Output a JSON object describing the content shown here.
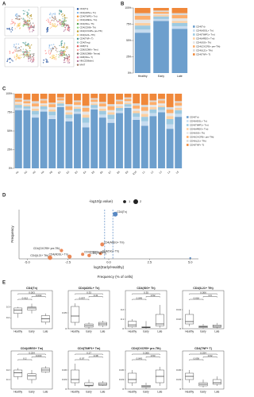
{
  "figure": {
    "panel_labels": [
      "A",
      "B",
      "C",
      "D",
      "E"
    ],
    "e_axis_title": "Frequency (% of cells)"
  },
  "chart_data": [
    {
      "type": "umap",
      "clusters": [
        {
          "name": "CD4(Tn)",
          "color": "#1f4e9c"
        },
        {
          "name": "CD4(ADSL+ Tn)",
          "color": "#7fb2e5"
        },
        {
          "name": "CD4(TIMP1+ Tm)",
          "color": "#f28e2b"
        },
        {
          "name": "CD4(AREG+ Tm)",
          "color": "#ffbe7d"
        },
        {
          "name": "CD4(ISG+ Th)",
          "color": "#59a14f"
        },
        {
          "name": "CD4(CD69+ Th)",
          "color": "#8cd17d"
        },
        {
          "name": "CD4(CXCR5+ pre-Tfh)",
          "color": "#b6992d"
        },
        {
          "name": "CD4(IL21+ Tfh)",
          "color": "#f1ce63"
        },
        {
          "name": "CD4(TNF+ T)",
          "color": "#499894"
        },
        {
          "name": "CD4(Treg)",
          "color": "#86bcb6"
        },
        {
          "name": "CD8(Tn)",
          "color": "#e15759"
        },
        {
          "name": "CD8(GZMK+ Tem)",
          "color": "#ff9d9a"
        },
        {
          "name": "CD8(GZMB+ Temra)",
          "color": "#79706e"
        },
        {
          "name": "CD8(ISG+ T)",
          "color": "#d37295"
        },
        {
          "name": "NK(CD56dim)",
          "color": "#b07aa1"
        },
        {
          "name": "MAIT",
          "color": "#9d7660"
        }
      ]
    },
    {
      "type": "stacked_bar",
      "categories": [
        "Healthy",
        "Early",
        "Late"
      ],
      "ylim": [
        0,
        100
      ],
      "yticks": [
        {
          "value": 0,
          "label": "0%"
        },
        {
          "value": 25,
          "label": "25%"
        },
        {
          "value": 50,
          "label": "50%"
        },
        {
          "value": 75,
          "label": "75%"
        },
        {
          "value": 100,
          "label": "100%"
        }
      ],
      "legend": "right",
      "series": [
        {
          "name": "CD4(Tn)",
          "color": "#6d9fcd",
          "values": [
            62,
            80,
            68
          ]
        },
        {
          "name": "CD4(ADSL+ Tn)",
          "color": "#c6dbef",
          "values": [
            5,
            3,
            4
          ]
        },
        {
          "name": "CD4(TIMP1+ Tm)",
          "color": "#9ecae1",
          "values": [
            6,
            4,
            5
          ]
        },
        {
          "name": "CD4(AREG+ Tm)",
          "color": "#fdd0a2",
          "values": [
            4,
            2,
            3
          ]
        },
        {
          "name": "CD4(ISG+ Th)",
          "color": "#e6e6e6",
          "values": [
            5,
            2,
            4
          ]
        },
        {
          "name": "CD4(CXCR5+ pre-Tfh)",
          "color": "#fdae6b",
          "values": [
            6,
            3,
            5
          ]
        },
        {
          "name": "CD4(IL21+ Tfh)",
          "color": "#d9d9d9",
          "values": [
            4,
            2,
            3
          ]
        },
        {
          "name": "CD4(TNF+ T)",
          "color": "#f0883a",
          "values": [
            8,
            4,
            8
          ]
        }
      ]
    },
    {
      "type": "stacked_bar",
      "categories": [
        "H1",
        "H2",
        "H3",
        "H4",
        "H5",
        "E1",
        "E2",
        "E3",
        "E4",
        "E5",
        "E6",
        "E7",
        "E8",
        "E9",
        "E10",
        "L1",
        "L2",
        "L3",
        "L4",
        "L5"
      ],
      "ylim": [
        0,
        100
      ],
      "yticks": [
        {
          "value": 0,
          "label": "0%"
        },
        {
          "value": 25,
          "label": "25%"
        },
        {
          "value": 50,
          "label": "50%"
        },
        {
          "value": 75,
          "label": "75%"
        },
        {
          "value": 100,
          "label": "100%"
        }
      ],
      "legend": "right",
      "series": [
        {
          "name": "CD4(Tn)",
          "color": "#6d9fcd",
          "values": [
            78,
            78,
            68,
            76,
            66,
            82,
            63,
            73,
            55,
            79,
            68,
            61,
            74,
            81,
            65,
            57,
            70,
            75,
            53,
            69
          ]
        },
        {
          "name": "CD4(ADSL+ Tn)",
          "color": "#c6dbef",
          "values": [
            3,
            2,
            4,
            3,
            5,
            2,
            4,
            3,
            6,
            2,
            4,
            5,
            3,
            2,
            4,
            6,
            4,
            3,
            6,
            4
          ]
        },
        {
          "name": "CD4(TIMP1+ Tm)",
          "color": "#9ecae1",
          "values": [
            4,
            3,
            5,
            4,
            5,
            3,
            5,
            4,
            7,
            4,
            5,
            6,
            4,
            3,
            5,
            6,
            5,
            4,
            7,
            5
          ]
        },
        {
          "name": "CD4(AREG+ Tm)",
          "color": "#fdd0a2",
          "values": [
            2,
            2,
            3,
            2,
            3,
            2,
            3,
            2,
            4,
            2,
            3,
            3,
            2,
            2,
            3,
            4,
            3,
            2,
            4,
            3
          ]
        },
        {
          "name": "CD4(ISG+ Th)",
          "color": "#e6e6e6",
          "values": [
            2,
            2,
            3,
            2,
            3,
            2,
            3,
            3,
            4,
            2,
            3,
            3,
            3,
            2,
            3,
            4,
            3,
            3,
            4,
            3
          ]
        },
        {
          "name": "CD4(CXCR5+ pre-Tfh)",
          "color": "#fdae6b",
          "values": [
            3,
            3,
            4,
            4,
            4,
            3,
            5,
            4,
            5,
            3,
            4,
            5,
            4,
            3,
            4,
            5,
            4,
            4,
            5,
            4
          ]
        },
        {
          "name": "CD4(IL21+ Tfh)",
          "color": "#d9d9d9",
          "values": [
            2,
            2,
            3,
            2,
            2,
            1,
            3,
            2,
            3,
            2,
            2,
            3,
            2,
            2,
            3,
            3,
            2,
            2,
            3,
            2
          ]
        },
        {
          "name": "CD4(TNF+ T)",
          "color": "#f0883a",
          "values": [
            6,
            8,
            10,
            7,
            12,
            5,
            14,
            9,
            16,
            6,
            11,
            14,
            8,
            5,
            13,
            15,
            9,
            7,
            18,
            10
          ]
        }
      ]
    },
    {
      "type": "scatter",
      "title": "-log10(p.value)",
      "xlabel": "log2(Early/Healthy)",
      "ylabel": "Frequency",
      "xlim": [
        -5.5,
        5.5
      ],
      "ylim": [
        0,
        0.13
      ],
      "xticks": [
        {
          "value": -5,
          "label": "-5.0"
        },
        -2.5,
        {
          "value": 0,
          "label": "0.0"
        },
        2.5,
        {
          "value": 5,
          "label": "5.0"
        }
      ],
      "vlines": [
        -0.25,
        0.25
      ],
      "size_legend": [
        1,
        2
      ],
      "x": [
        0.4,
        -0.4,
        -2.9,
        -1.6,
        -0.5,
        -2.4,
        -3.6,
        5,
        -1.2
      ],
      "values": [
        0.118,
        0.038,
        0.022,
        0.012,
        0.014,
        0.006,
        0.003,
        0.002,
        0.009
      ],
      "sizes": [
        2,
        1.5,
        1.2,
        1.1,
        1,
        1.6,
        1.8,
        0.3,
        1.3
      ],
      "labels": [
        "CD4(Tn)",
        "CD4(AREG+ Tm)",
        "CD4(CXCR5+ pre-Tfh)",
        "CD4(TIMP1+ Tm)",
        "CD4(ISG+ Th)",
        "CD4(ADSL+ Tn)",
        "CD4(IL21+ Tfh)",
        null,
        "CD4(TNF+ T)"
      ],
      "colors": [
        "#3b73b9",
        "#e8743b",
        "#e8743b",
        "#e8743b",
        "#e8743b",
        "#e8743b",
        "#e8743b",
        "#3b73b9",
        "#e8743b"
      ]
    },
    {
      "type": "box",
      "title": "CD4(Tn)",
      "groups": [
        "Healthy",
        "Early",
        "Late"
      ],
      "ylim": [
        0.1,
        0.45
      ],
      "yticks": [
        0.2,
        0.3
      ],
      "boxes": [
        {
          "min": 0.2,
          "q1": 0.24,
          "median": 0.27,
          "q3": 0.29,
          "max": 0.3
        },
        {
          "min": 0.24,
          "q1": 0.27,
          "median": 0.29,
          "q3": 0.3,
          "max": 0.33
        },
        {
          "min": 0.14,
          "q1": 0.16,
          "median": 0.19,
          "q3": 0.22,
          "max": 0.24
        }
      ],
      "p_values": [
        0.012,
        0.002,
        0.003
      ]
    },
    {
      "type": "box",
      "title": "CD4(ADSL+ Tn)",
      "groups": [
        "Healthy",
        "Early",
        "Late"
      ],
      "ylim": [
        0,
        0.12
      ],
      "yticks": [
        0,
        0.05
      ],
      "boxes": [
        {
          "min": 0.01,
          "q1": 0.02,
          "median": 0.04,
          "q3": 0.07,
          "max": 0.08
        },
        {
          "min": 0,
          "q1": 0.005,
          "median": 0.01,
          "q3": 0.015,
          "max": 0.02
        },
        {
          "min": 0.005,
          "q1": 0.01,
          "median": 0.015,
          "q3": 0.02,
          "max": 0.025
        }
      ],
      "p_values": [
        0.037,
        0.41,
        0.33
      ]
    },
    {
      "type": "box",
      "title": "CD4(ISG+ Th)",
      "groups": [
        "Healthy",
        "Early",
        "Late"
      ],
      "ylim": [
        0,
        0.4
      ],
      "yticks": [
        0,
        0.1,
        0.2
      ],
      "boxes": [
        {
          "min": 0.01,
          "q1": 0.02,
          "median": 0.04,
          "q3": 0.08,
          "max": 0.1
        },
        {
          "min": 0,
          "q1": 0.01,
          "median": 0.015,
          "q3": 0.02,
          "max": 0.08
        },
        {
          "min": 0.01,
          "q1": 0.03,
          "median": 0.05,
          "q3": 0.15,
          "max": 0.25
        }
      ],
      "p_values": [
        0.049,
        0.52,
        0.35
      ]
    },
    {
      "type": "box",
      "title": "CD4(IL21+ Tfh)",
      "groups": [
        "Healthy",
        "Early",
        "Late"
      ],
      "ylim": [
        0,
        0.08
      ],
      "yticks": [
        0,
        0.02,
        0.04
      ],
      "boxes": [
        {
          "min": 0.005,
          "q1": 0.01,
          "median": 0.015,
          "q3": 0.03,
          "max": 0.04
        },
        {
          "min": 0,
          "q1": 0.002,
          "median": 0.004,
          "q3": 0.006,
          "max": 0.01
        },
        {
          "min": 0.001,
          "q1": 0.003,
          "median": 0.005,
          "q3": 0.008,
          "max": 0.012
        }
      ],
      "p_values": [
        0.016,
        0.6,
        0.006
      ]
    },
    {
      "type": "box",
      "title": "CD4(AREG+ Tm)",
      "groups": [
        "Healthy",
        "Early",
        "Late"
      ],
      "ylim": [
        0,
        0.4
      ],
      "yticks": [
        0.1,
        0.2
      ],
      "boxes": [
        {
          "min": 0.1,
          "q1": 0.13,
          "median": 0.17,
          "q3": 0.2,
          "max": 0.22
        },
        {
          "min": 0.06,
          "q1": 0.1,
          "median": 0.14,
          "q3": 0.16,
          "max": 0.2
        },
        {
          "min": 0.17,
          "q1": 0.18,
          "median": 0.2,
          "q3": 0.22,
          "max": 0.24
        }
      ],
      "p_values": [
        0.2,
        0.003,
        0.034
      ]
    },
    {
      "type": "box",
      "title": "CD4(TIMP1+ Tm)",
      "groups": [
        "Healthy",
        "Early",
        "Late"
      ],
      "ylim": [
        0,
        0.12
      ],
      "yticks": [
        0,
        0.03,
        0.06
      ],
      "boxes": [
        {
          "min": 0.01,
          "q1": 0.02,
          "median": 0.03,
          "q3": 0.06,
          "max": 0.08
        },
        {
          "min": 0.005,
          "q1": 0.01,
          "median": 0.012,
          "q3": 0.02,
          "max": 0.03
        },
        {
          "min": 0.01,
          "q1": 0.012,
          "median": 0.015,
          "q3": 0.02,
          "max": 0.025
        }
      ],
      "p_values": [
        0.07,
        0.38,
        0.27
      ]
    },
    {
      "type": "box",
      "title": "CD4(CXCR5+ pre-Tfh)",
      "groups": [
        "Healthy",
        "Early",
        "Late"
      ],
      "ylim": [
        0,
        0.12
      ],
      "yticks": [
        0,
        0.03,
        0.06
      ],
      "boxes": [
        {
          "min": 0.01,
          "q1": 0.02,
          "median": 0.03,
          "q3": 0.05,
          "max": 0.06
        },
        {
          "min": 0,
          "q1": 0.005,
          "median": 0.008,
          "q3": 0.012,
          "max": 0.02
        },
        {
          "min": 0.01,
          "q1": 0.02,
          "median": 0.04,
          "q3": 0.06,
          "max": 0.07
        }
      ],
      "p_values": [
        0.043,
        0.53,
        0.066
      ]
    },
    {
      "type": "box",
      "title": "CD4(TNF+ T)",
      "groups": [
        "Healthy",
        "Early",
        "Late"
      ],
      "ylim": [
        0,
        0.12
      ],
      "yticks": [
        0,
        0.03,
        0.06
      ],
      "boxes": [
        {
          "min": 0.02,
          "q1": 0.03,
          "median": 0.04,
          "q3": 0.05,
          "max": 0.06
        },
        {
          "min": 0.005,
          "q1": 0.01,
          "median": 0.015,
          "q3": 0.02,
          "max": 0.03
        },
        {
          "min": 0.01,
          "q1": 0.015,
          "median": 0.02,
          "q3": 0.03,
          "max": 0.04
        }
      ],
      "p_values": [
        0.036,
        0.62,
        0.034
      ]
    }
  ]
}
